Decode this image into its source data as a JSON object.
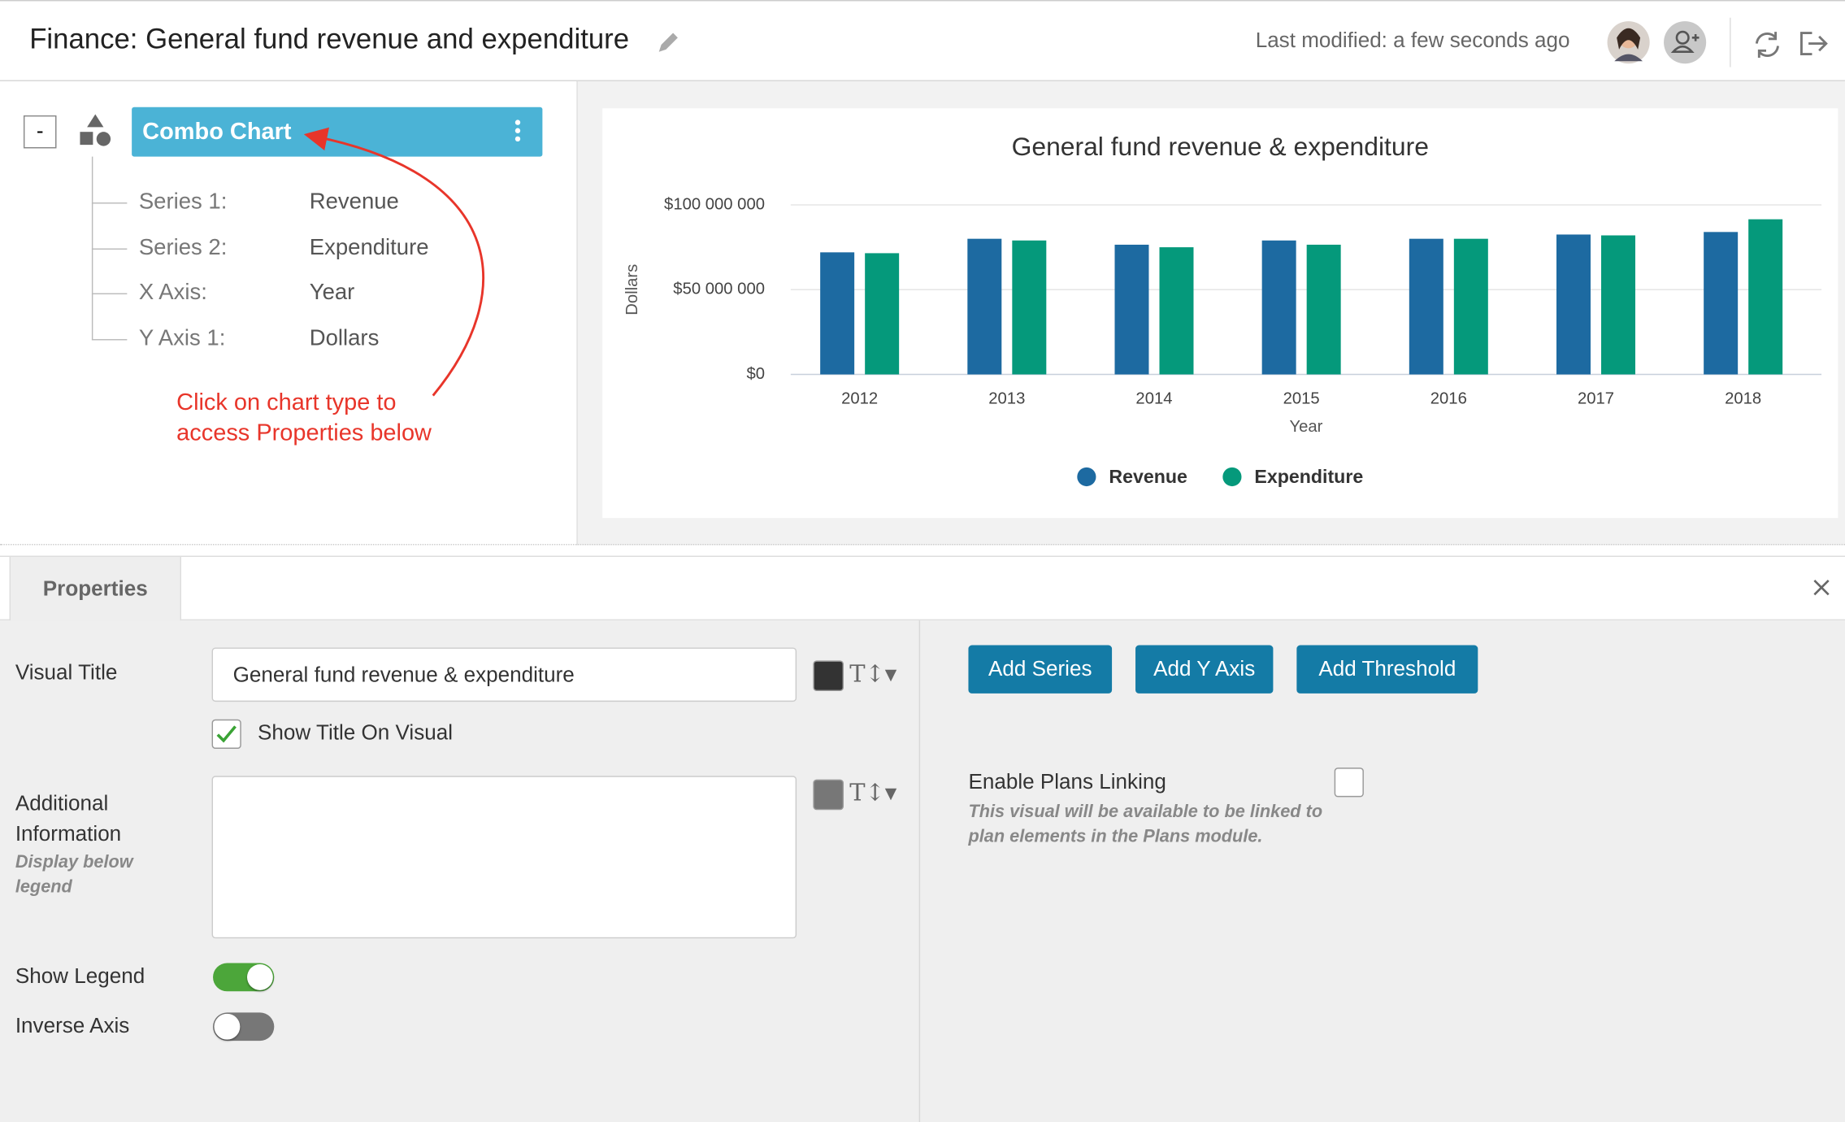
{
  "header": {
    "title": "Finance: General fund revenue and expenditure",
    "last_modified": "Last modified: a few seconds ago"
  },
  "tree": {
    "collapse": "-",
    "node": "Combo Chart",
    "items": [
      {
        "label": "Series 1:",
        "value": "Revenue"
      },
      {
        "label": "Series 2:",
        "value": "Expenditure"
      },
      {
        "label": "X Axis:",
        "value": "Year"
      },
      {
        "label": "Y Axis 1:",
        "value": "Dollars"
      }
    ]
  },
  "annotation": [
    "Click on chart type to",
    "access Properties below"
  ],
  "chart_data": {
    "type": "bar",
    "title": "General fund revenue & expenditure",
    "x_label": "Year",
    "y_label": "Dollars",
    "categories": [
      "2012",
      "2013",
      "2014",
      "2015",
      "2016",
      "2017",
      "2018"
    ],
    "series": [
      {
        "name": "Revenue",
        "color": "#1d6aa1",
        "values": [
          72000000,
          80000000,
          76500000,
          79000000,
          80000000,
          82500000,
          84000000
        ]
      },
      {
        "name": "Expenditure",
        "color": "#05997b",
        "values": [
          71500000,
          79000000,
          75000000,
          76500000,
          80000000,
          82000000,
          91500000
        ]
      }
    ],
    "ylim": [
      0,
      100000000
    ],
    "yticks": [
      {
        "value": 0,
        "label": "$0"
      },
      {
        "value": 50000000,
        "label": "$50 000 000"
      },
      {
        "value": 100000000,
        "label": "$100 000 000"
      }
    ],
    "grid": true,
    "legend": "bottom"
  },
  "properties": {
    "tab": "Properties",
    "visual_title": {
      "label": "Visual Title",
      "value": "General fund revenue & expenditure"
    },
    "show_title": {
      "label": "Show Title On Visual",
      "checked": true
    },
    "additional": {
      "label": "Additional Information",
      "hint": "Display below legend"
    },
    "show_legend": {
      "label": "Show Legend",
      "on": true
    },
    "inverse_axis": {
      "label": "Inverse Axis",
      "on": false
    },
    "buttons": [
      "Add Series",
      "Add Y Axis",
      "Add Threshold"
    ],
    "plans_linking": {
      "label": "Enable Plans Linking",
      "hint": "This visual will be available to be linked to plan elements in the Plans module.",
      "checked": false
    }
  }
}
